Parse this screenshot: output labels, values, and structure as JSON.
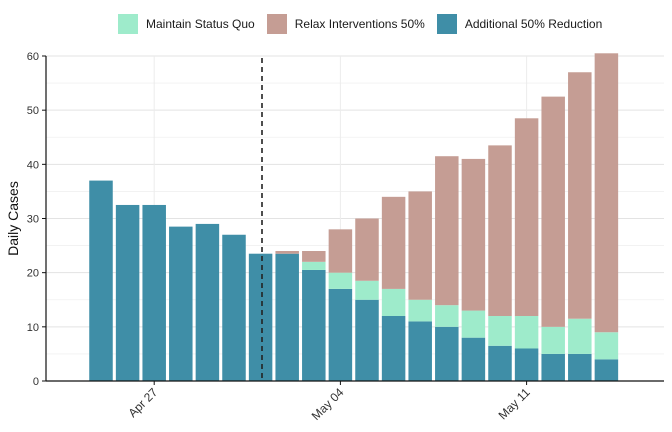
{
  "chart_data": {
    "type": "bar",
    "stacked": true,
    "title": "",
    "xlabel": "",
    "ylabel": "Daily Cases",
    "ylim": [
      0,
      60
    ],
    "yticks": [
      0,
      10,
      20,
      30,
      40,
      50,
      60
    ],
    "xticks": [
      {
        "label": "Apr 27",
        "index": 2
      },
      {
        "label": "May 04",
        "index": 9
      },
      {
        "label": "May 11",
        "index": 16
      }
    ],
    "grid": true,
    "legend_position": "top",
    "intervention_marker_after_index": 6,
    "days": 20,
    "observed": [
      37,
      32.5,
      32.5,
      28.5,
      29,
      27,
      23.5
    ],
    "series": [
      {
        "name": "Maintain Status Quo",
        "color": "#9eebcb"
      },
      {
        "name": "Relax Interventions 50%",
        "color": "#c59d94"
      },
      {
        "name": "Additional 50% Reduction",
        "color": "#3f8ea7"
      }
    ],
    "projections": [
      {
        "reduction": 23.5,
        "status_quo": 23.5,
        "relax": 24
      },
      {
        "reduction": 20.5,
        "status_quo": 22,
        "relax": 24
      },
      {
        "reduction": 17,
        "status_quo": 20,
        "relax": 28
      },
      {
        "reduction": 15,
        "status_quo": 18.5,
        "relax": 30
      },
      {
        "reduction": 12,
        "status_quo": 17,
        "relax": 34
      },
      {
        "reduction": 11,
        "status_quo": 15,
        "relax": 35
      },
      {
        "reduction": 10,
        "status_quo": 14,
        "relax": 41.5
      },
      {
        "reduction": 8,
        "status_quo": 13,
        "relax": 41
      },
      {
        "reduction": 6.5,
        "status_quo": 12,
        "relax": 43.5
      },
      {
        "reduction": 6,
        "status_quo": 12,
        "relax": 48.5
      },
      {
        "reduction": 5,
        "status_quo": 10,
        "relax": 52.5
      },
      {
        "reduction": 5,
        "status_quo": 11.5,
        "relax": 57
      },
      {
        "reduction": 4,
        "status_quo": 9,
        "relax": 60.5
      }
    ]
  }
}
